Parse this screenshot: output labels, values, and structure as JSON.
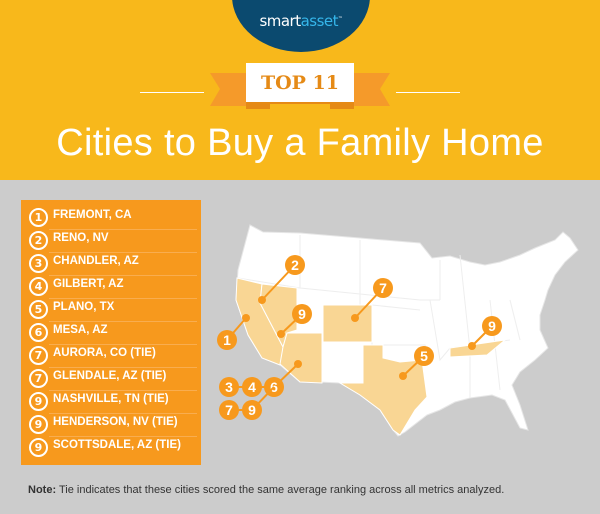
{
  "brand": {
    "logo_text_a": "smart",
    "logo_text_b": "asset",
    "logo_mark": "™"
  },
  "badge": "TOP 11",
  "title": "Cities to Buy a Family Home",
  "colors": {
    "header": "#f8b81b",
    "list_bg": "#f7991d",
    "highlight_state": "#f9d694",
    "marker": "#f7991d",
    "logo": "#0b4a6f"
  },
  "cities": [
    {
      "rank": "1",
      "name": "FREMONT, CA"
    },
    {
      "rank": "2",
      "name": "RENO, NV"
    },
    {
      "rank": "3",
      "name": "CHANDLER, AZ"
    },
    {
      "rank": "4",
      "name": "GILBERT, AZ"
    },
    {
      "rank": "5",
      "name": "PLANO, TX"
    },
    {
      "rank": "6",
      "name": "MESA, AZ"
    },
    {
      "rank": "7",
      "name": "AURORA, CO (TIE)"
    },
    {
      "rank": "7",
      "name": "GLENDALE, AZ (TIE)"
    },
    {
      "rank": "9",
      "name": "NASHVILLE, TN (TIE)"
    },
    {
      "rank": "9",
      "name": "HENDERSON, NV (TIE)"
    },
    {
      "rank": "9",
      "name": "SCOTTSDALE, AZ (TIE)"
    }
  ],
  "map": {
    "highlighted_states": [
      "CA",
      "NV",
      "AZ",
      "CO",
      "TX",
      "TN"
    ],
    "markers": [
      {
        "label": "1",
        "city": "Fremont"
      },
      {
        "label": "2",
        "city": "Reno"
      },
      {
        "label": "9",
        "city": "Henderson"
      },
      {
        "label": "7",
        "city": "Aurora"
      },
      {
        "label": "9",
        "city": "Nashville"
      },
      {
        "label": "5",
        "city": "Plano"
      },
      {
        "label": "6",
        "city": "Mesa"
      },
      {
        "label": "3",
        "city": "Chandler"
      },
      {
        "label": "4",
        "city": "Gilbert"
      },
      {
        "label": "7",
        "city": "Glendale"
      },
      {
        "label": "9",
        "city": "Scottsdale"
      }
    ]
  },
  "note": {
    "label": "Note:",
    "text": " Tie indicates that these cities scored the same average ranking across all metrics analyzed."
  }
}
